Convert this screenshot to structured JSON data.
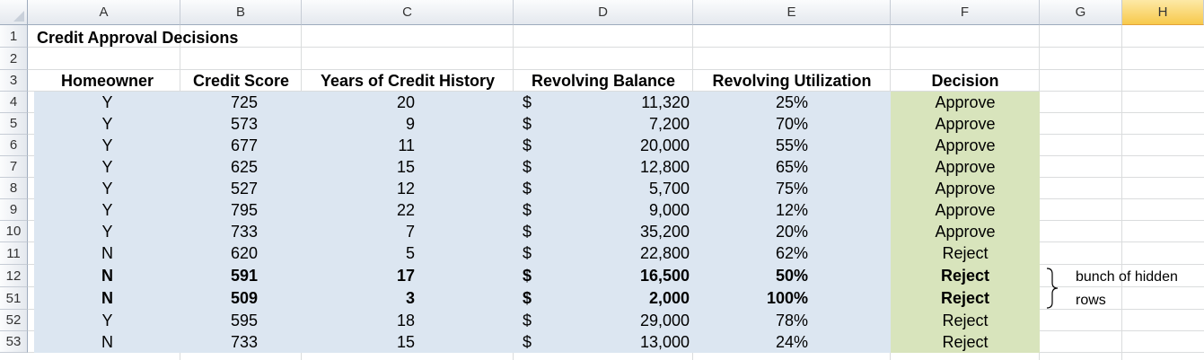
{
  "columns": [
    "A",
    "B",
    "C",
    "D",
    "E",
    "F",
    "G",
    "H"
  ],
  "selected_column": "H",
  "row_numbers": [
    "1",
    "2",
    "3",
    "4",
    "5",
    "6",
    "7",
    "8",
    "9",
    "10",
    "11",
    "12",
    "51",
    "52",
    "53"
  ],
  "title": "Credit Approval Decisions",
  "headers": {
    "homeowner": "Homeowner",
    "credit_score": "Credit Score",
    "years": "Years of Credit History",
    "balance": "Revolving Balance",
    "utilization": "Revolving Utilization",
    "decision": "Decision"
  },
  "currency_symbol": "$",
  "rows": [
    {
      "homeowner": "Y",
      "credit_score": "725",
      "years": "20",
      "balance": "11,320",
      "utilization": "25%",
      "decision": "Approve",
      "bold": false
    },
    {
      "homeowner": "Y",
      "credit_score": "573",
      "years": "9",
      "balance": "7,200",
      "utilization": "70%",
      "decision": "Approve",
      "bold": false
    },
    {
      "homeowner": "Y",
      "credit_score": "677",
      "years": "11",
      "balance": "20,000",
      "utilization": "55%",
      "decision": "Approve",
      "bold": false
    },
    {
      "homeowner": "Y",
      "credit_score": "625",
      "years": "15",
      "balance": "12,800",
      "utilization": "65%",
      "decision": "Approve",
      "bold": false
    },
    {
      "homeowner": "Y",
      "credit_score": "527",
      "years": "12",
      "balance": "5,700",
      "utilization": "75%",
      "decision": "Approve",
      "bold": false
    },
    {
      "homeowner": "Y",
      "credit_score": "795",
      "years": "22",
      "balance": "9,000",
      "utilization": "12%",
      "decision": "Approve",
      "bold": false
    },
    {
      "homeowner": "Y",
      "credit_score": "733",
      "years": "7",
      "balance": "35,200",
      "utilization": "20%",
      "decision": "Approve",
      "bold": false
    },
    {
      "homeowner": "N",
      "credit_score": "620",
      "years": "5",
      "balance": "22,800",
      "utilization": "62%",
      "decision": "Reject",
      "bold": false
    },
    {
      "homeowner": "N",
      "credit_score": "591",
      "years": "17",
      "balance": "16,500",
      "utilization": "50%",
      "decision": "Reject",
      "bold": true
    },
    {
      "homeowner": "N",
      "credit_score": "509",
      "years": "3",
      "balance": "2,000",
      "utilization": "100%",
      "decision": "Reject",
      "bold": true
    },
    {
      "homeowner": "Y",
      "credit_score": "595",
      "years": "18",
      "balance": "29,000",
      "utilization": "78%",
      "decision": "Reject",
      "bold": false
    },
    {
      "homeowner": "N",
      "credit_score": "733",
      "years": "15",
      "balance": "13,000",
      "utilization": "24%",
      "decision": "Reject",
      "bold": false
    }
  ],
  "annotation": {
    "line1": "bunch of hidden",
    "line2": "rows"
  },
  "colors": {
    "data_fill": "#dce6f1",
    "decision_fill": "#d8e4bc",
    "selected_header": "#f7c94c"
  }
}
